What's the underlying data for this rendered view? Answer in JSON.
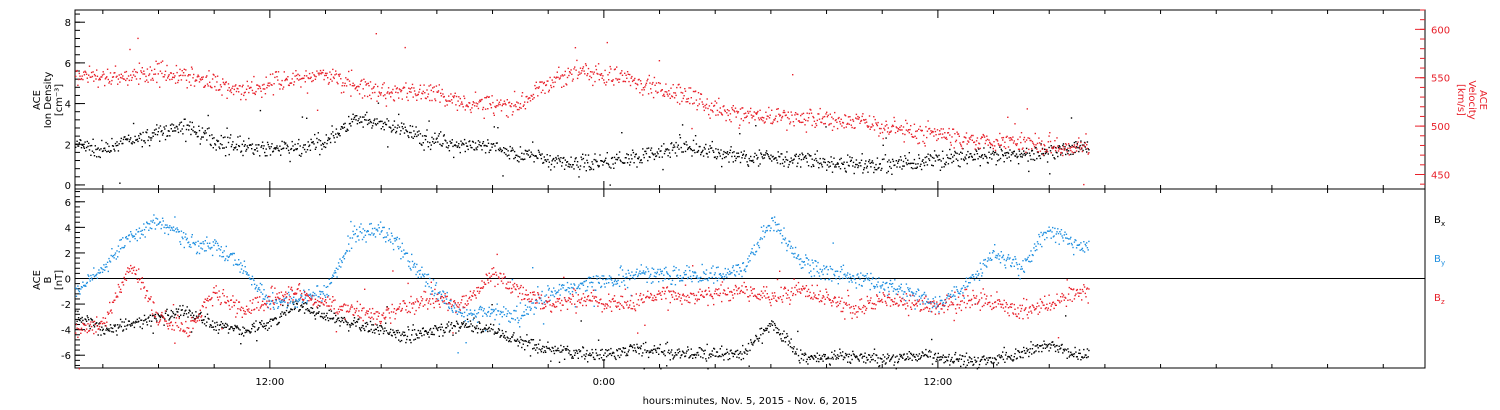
{
  "colors": {
    "density": "#000000",
    "velocity": "#e8202a",
    "bx": "#000000",
    "by": "#1f8fe0",
    "bz": "#e8202a",
    "frame": "#000000"
  },
  "xaxis": {
    "label": "hours:minutes, Nov.  5, 2015 - Nov.  6, 2015",
    "range_hours": [
      2.5,
      26.75
    ],
    "data_end_hours": 20.7,
    "ticks": [
      {
        "hour": 6,
        "label": "12:00"
      },
      {
        "hour": 12,
        "label": "0:00"
      },
      {
        "hour": 18,
        "label": "12:00"
      }
    ]
  },
  "chart_data": [
    {
      "type": "scatter",
      "panel": "top",
      "left_axis": {
        "lines": [
          "ACE",
          "Ion Density",
          "[cm⁻³]"
        ],
        "ylim": [
          -0.2,
          8.6
        ],
        "ticks": [
          "0",
          "2",
          "4",
          "6",
          "8"
        ]
      },
      "right_axis": {
        "lines": [
          "ACE",
          "Velocity",
          "[km/s]"
        ],
        "ylim": [
          435,
          620
        ],
        "ticks": [
          "450",
          "500",
          "550",
          "600"
        ]
      },
      "x": [
        2.5,
        3.0,
        3.5,
        4.0,
        4.5,
        5.0,
        5.5,
        6.0,
        6.5,
        7.0,
        7.5,
        8.0,
        8.5,
        9.0,
        9.5,
        10.0,
        10.5,
        11.0,
        11.5,
        12.0,
        12.5,
        13.0,
        13.5,
        14.0,
        14.5,
        15.0,
        15.5,
        16.0,
        16.5,
        17.0,
        17.5,
        18.0,
        18.5,
        19.0,
        19.5,
        20.0,
        20.5
      ],
      "series": [
        {
          "name": "Ion Density",
          "axis": "left",
          "values": [
            2.0,
            1.7,
            2.2,
            2.6,
            2.9,
            2.2,
            1.9,
            1.8,
            1.8,
            2.2,
            3.2,
            3.0,
            2.6,
            2.2,
            2.0,
            1.8,
            1.6,
            1.3,
            1.1,
            1.2,
            1.4,
            1.6,
            1.9,
            1.6,
            1.4,
            1.4,
            1.3,
            1.1,
            1.0,
            1.0,
            1.1,
            1.3,
            1.4,
            1.4,
            1.5,
            1.7,
            1.9
          ]
        },
        {
          "name": "Velocity",
          "axis": "right",
          "values": [
            555,
            550,
            553,
            557,
            552,
            545,
            538,
            545,
            550,
            553,
            543,
            533,
            538,
            533,
            525,
            522,
            525,
            545,
            558,
            553,
            548,
            538,
            532,
            518,
            512,
            510,
            510,
            508,
            505,
            500,
            495,
            492,
            488,
            485,
            485,
            482,
            480
          ]
        }
      ]
    },
    {
      "type": "scatter",
      "panel": "bottom",
      "left_axis": {
        "lines": [
          "ACE",
          "B",
          "[nT]"
        ],
        "ylim": [
          -7.0,
          7.0
        ],
        "ticks": [
          "-6",
          "-4",
          "-2",
          "0",
          "2",
          "4",
          "6"
        ]
      },
      "zero_line": true,
      "legend": {
        "placement": "right",
        "entries": [
          {
            "label": "B",
            "sub": "x"
          },
          {
            "label": "B",
            "sub": "y"
          },
          {
            "label": "B",
            "sub": "z"
          }
        ]
      },
      "x": [
        2.5,
        3.0,
        3.5,
        4.0,
        4.5,
        5.0,
        5.5,
        6.0,
        6.5,
        7.0,
        7.5,
        8.0,
        8.5,
        9.0,
        9.5,
        10.0,
        10.5,
        11.0,
        11.5,
        12.0,
        12.5,
        13.0,
        13.5,
        14.0,
        14.5,
        15.0,
        15.5,
        16.0,
        16.5,
        17.0,
        17.5,
        18.0,
        18.5,
        19.0,
        19.5,
        20.0,
        20.5
      ],
      "series": [
        {
          "name": "Bx",
          "values": [
            -3.0,
            -4.0,
            -3.5,
            -3.0,
            -2.5,
            -3.5,
            -4.0,
            -3.5,
            -2.0,
            -3.0,
            -3.5,
            -4.0,
            -4.5,
            -4.0,
            -3.5,
            -4.0,
            -5.0,
            -5.5,
            -5.8,
            -6.0,
            -5.5,
            -5.6,
            -5.9,
            -5.8,
            -5.9,
            -3.5,
            -6.0,
            -6.2,
            -6.0,
            -6.3,
            -6.0,
            -6.1,
            -6.3,
            -6.2,
            -5.8,
            -5.2,
            -6.0
          ]
        },
        {
          "name": "By",
          "values": [
            -1.0,
            1.0,
            3.5,
            4.5,
            3.0,
            2.5,
            1.0,
            -2.0,
            -1.5,
            -1.0,
            3.5,
            4.0,
            1.5,
            -1.0,
            -3.0,
            -2.5,
            -3.0,
            -1.0,
            -0.5,
            0.0,
            0.3,
            0.5,
            0.2,
            0.3,
            0.8,
            4.5,
            1.5,
            0.5,
            0.2,
            -0.5,
            -1.0,
            -2.0,
            -0.5,
            2.0,
            1.0,
            4.0,
            2.5
          ]
        },
        {
          "name": "Bz",
          "values": [
            -4.0,
            -3.5,
            1.0,
            -3.0,
            -4.0,
            -1.0,
            -2.5,
            -1.5,
            -1.0,
            -2.0,
            -2.5,
            -3.0,
            -2.0,
            -1.5,
            -2.0,
            0.5,
            -1.0,
            -2.0,
            -1.5,
            -1.8,
            -2.0,
            -1.0,
            -1.5,
            -1.0,
            -0.8,
            -1.5,
            -1.0,
            -1.5,
            -2.5,
            -1.5,
            -2.0,
            -2.2,
            -1.5,
            -1.8,
            -2.5,
            -2.0,
            -1.0
          ]
        }
      ]
    }
  ]
}
